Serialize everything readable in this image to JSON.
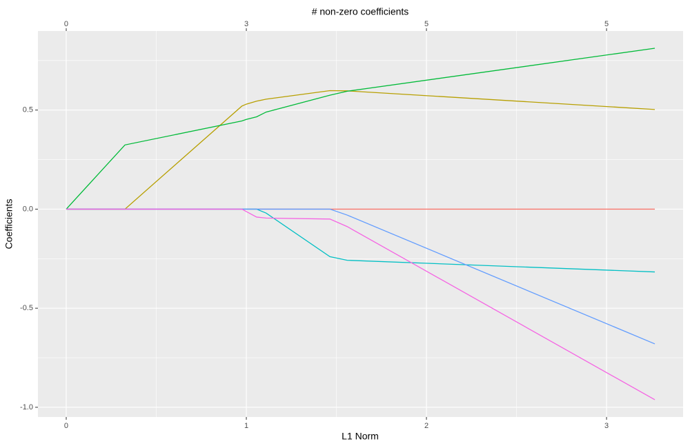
{
  "chart_data": {
    "type": "line",
    "top_axis_title": "# non-zero coefficients",
    "top_ticks": [
      0,
      {
        "value": 1,
        "label": "3"
      },
      {
        "value": 2,
        "label": "5"
      },
      {
        "value": 3,
        "label": "5"
      }
    ],
    "x_title": "L1 Norm",
    "y_title": "Coefficients",
    "x": [
      0,
      0.326,
      0.975,
      1.0,
      1.057,
      1.11,
      1.464,
      1.56,
      3.268
    ],
    "series": [
      {
        "color": "#F8766D",
        "values": [
          0,
          0,
          0,
          0,
          0,
          0,
          0,
          0,
          0
        ]
      },
      {
        "color": "#B79F00",
        "values": [
          0,
          0,
          0.52,
          0.53,
          0.545,
          0.555,
          0.598,
          0.597,
          0.503
        ]
      },
      {
        "color": "#00BA38",
        "values": [
          0,
          0.324,
          0.445,
          0.453,
          0.466,
          0.49,
          0.575,
          0.595,
          0.812
        ]
      },
      {
        "color": "#00BFC4",
        "values": [
          0,
          0,
          0,
          0,
          0,
          -0.02,
          -0.24,
          -0.258,
          -0.317
        ]
      },
      {
        "color": "#619CFF",
        "values": [
          0,
          0,
          0,
          0,
          0,
          0,
          0,
          -0.03,
          -0.68
        ]
      },
      {
        "color": "#F564E3",
        "values": [
          0,
          0,
          0,
          -0.012,
          -0.04,
          -0.045,
          -0.05,
          -0.088,
          -0.962
        ]
      }
    ],
    "xlim": [
      -0.157,
      3.425
    ],
    "ylim": [
      -1.049,
      0.899
    ],
    "xticks": [
      0,
      1,
      2,
      3
    ],
    "yticks": [
      {
        "value": -1,
        "label": "-1.0"
      },
      -0.5,
      {
        "value": 0,
        "label": "0.0"
      },
      0.5
    ],
    "x_minor_grid": [
      0.5,
      1.5,
      2.5
    ],
    "y_minor_grid": [
      -0.75,
      -0.25,
      0.25,
      0.75
    ],
    "grid": true,
    "background": "#EBEBEB"
  }
}
